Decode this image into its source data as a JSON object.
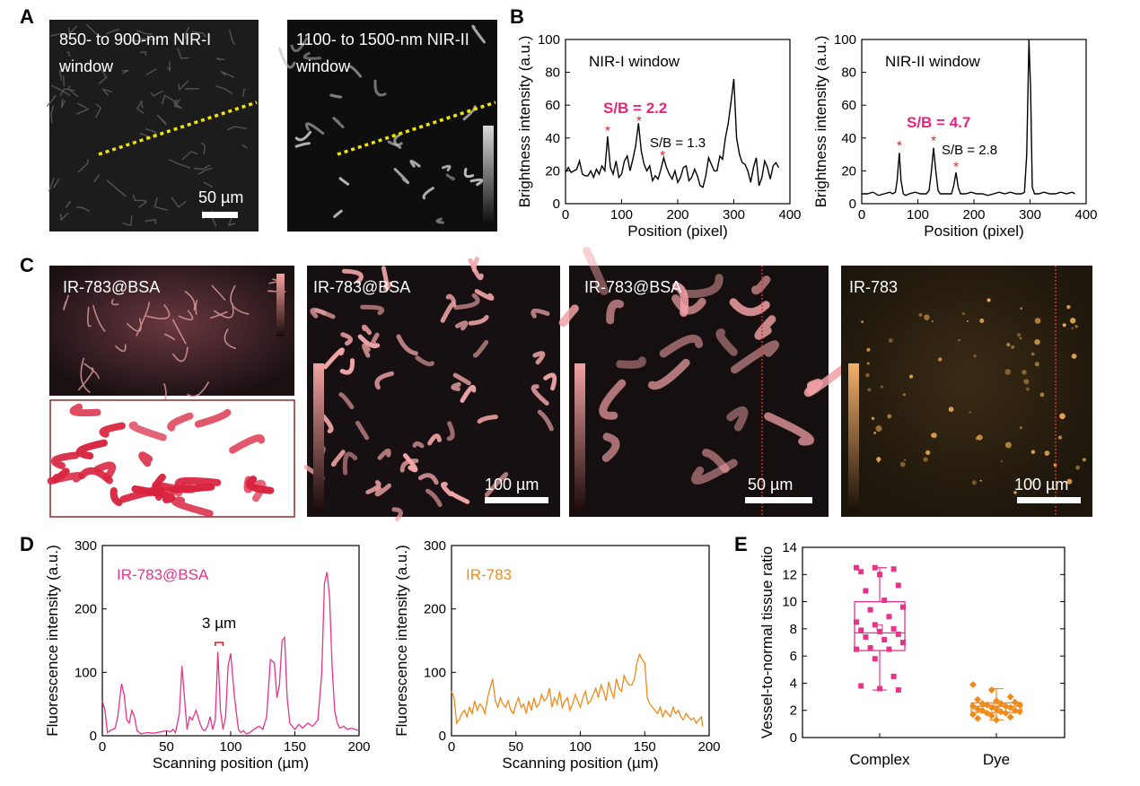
{
  "panel_labels": {
    "A": "A",
    "B": "B",
    "C": "C",
    "D": "D",
    "E": "E"
  },
  "panelA": {
    "left_caption_line1": "850- to 900-nm NIR-I",
    "left_caption_line2": "window",
    "right_caption_line1": "1100- to 1500-nm NIR-II",
    "right_caption_line2": "window",
    "scale_label": "50 µm"
  },
  "panelC": {
    "img1_label": "IR-783@BSA",
    "img2_label": "IR-783@BSA",
    "img2_scale": "100 µm",
    "img3_label": "IR-783@BSA",
    "img3_scale": "50 µm",
    "img4_label": "IR-783",
    "img4_scale": "100 µm"
  },
  "colors": {
    "complex": "#e8338a",
    "dye": "#f08a1c",
    "line": "#000000",
    "marker": "#e02020",
    "sb_text": "#e8237a"
  },
  "chart_data": [
    {
      "id": "B1",
      "type": "line",
      "title": "NIR-I window",
      "xlabel": "Position (pixel)",
      "ylabel": "Brightness intensity (a.u.)",
      "xlim": [
        0,
        400
      ],
      "ylim": [
        0,
        100
      ],
      "xticks": [
        0,
        100,
        200,
        300,
        400
      ],
      "yticks": [
        0,
        20,
        40,
        60,
        80,
        100
      ],
      "annotations": {
        "sb_main": "S/B = 2.2",
        "sb_secondary": "S/B = 1.3",
        "star": "*"
      },
      "stars": [
        [
          75,
          44
        ],
        [
          131,
          50
        ],
        [
          173,
          29
        ]
      ],
      "x": [
        0,
        5,
        10,
        15,
        20,
        25,
        30,
        35,
        40,
        45,
        50,
        55,
        60,
        65,
        70,
        75,
        80,
        85,
        90,
        95,
        100,
        105,
        110,
        115,
        120,
        125,
        130,
        135,
        140,
        145,
        150,
        155,
        160,
        165,
        170,
        175,
        180,
        185,
        190,
        195,
        200,
        205,
        210,
        215,
        220,
        225,
        230,
        235,
        240,
        245,
        250,
        255,
        260,
        265,
        270,
        275,
        280,
        285,
        290,
        295,
        300,
        305,
        310,
        315,
        320,
        325,
        330,
        335,
        340,
        345,
        350,
        355,
        360,
        365,
        370,
        375,
        380
      ],
      "y": [
        19,
        22,
        19,
        20,
        21,
        26,
        18,
        17,
        17,
        20,
        16,
        21,
        18,
        23,
        20,
        41,
        22,
        18,
        26,
        16,
        18,
        26,
        29,
        20,
        27,
        35,
        49,
        32,
        24,
        20,
        23,
        14,
        17,
        15,
        21,
        28,
        22,
        18,
        15,
        20,
        13,
        16,
        22,
        23,
        14,
        16,
        21,
        17,
        11,
        10,
        17,
        28,
        24,
        20,
        20,
        29,
        27,
        40,
        49,
        62,
        76,
        40,
        30,
        25,
        24,
        20,
        13,
        22,
        28,
        11,
        16,
        26,
        22,
        15,
        23,
        25,
        22
      ]
    },
    {
      "id": "B2",
      "type": "line",
      "title": "NIR-II window",
      "xlabel": "Position (pixel)",
      "ylabel": "Brightness intensity (a.u.)",
      "xlim": [
        0,
        400
      ],
      "ylim": [
        0,
        100
      ],
      "xticks": [
        0,
        100,
        200,
        300,
        400
      ],
      "yticks": [
        0,
        20,
        40,
        60,
        80,
        100
      ],
      "annotations": {
        "sb_main": "S/B = 4.7",
        "sb_secondary": "S/B = 2.8",
        "star": "*"
      },
      "stars": [
        [
          67,
          35
        ],
        [
          128,
          38
        ],
        [
          168,
          22
        ]
      ],
      "x": [
        0,
        10,
        20,
        30,
        40,
        50,
        55,
        60,
        63,
        67,
        70,
        74,
        78,
        85,
        95,
        105,
        115,
        120,
        124,
        128,
        132,
        136,
        140,
        150,
        160,
        164,
        168,
        172,
        176,
        185,
        195,
        205,
        215,
        225,
        235,
        245,
        255,
        265,
        275,
        285,
        290,
        294,
        298,
        301,
        304,
        308,
        315,
        325,
        335,
        345,
        355,
        365,
        375,
        380
      ],
      "y": [
        6,
        6,
        7,
        5,
        6,
        7,
        6,
        7,
        14,
        31,
        14,
        6,
        5,
        6,
        7,
        6,
        6,
        8,
        19,
        34,
        20,
        8,
        6,
        6,
        6,
        11,
        19,
        10,
        6,
        6,
        7,
        6,
        6,
        5,
        6,
        7,
        6,
        7,
        6,
        6,
        7,
        30,
        100,
        70,
        10,
        6,
        6,
        7,
        6,
        6,
        7,
        6,
        7,
        6
      ]
    },
    {
      "id": "D1",
      "type": "line",
      "series_label": "IR-783@BSA",
      "xlabel": "Scanning position (µm)",
      "ylabel": "Fluorescence intensity (a.u.)",
      "xlim": [
        0,
        200
      ],
      "ylim": [
        0,
        300
      ],
      "xticks": [
        0,
        50,
        100,
        150,
        200
      ],
      "yticks": [
        0,
        100,
        200,
        300
      ],
      "annotation": "3 µm",
      "x": [
        0,
        2,
        4,
        6,
        8,
        10,
        12,
        15,
        17,
        19,
        21,
        23,
        25,
        27,
        30,
        35,
        40,
        45,
        50,
        53,
        55,
        57,
        60,
        62,
        64,
        66,
        68,
        70,
        73,
        76,
        78,
        80,
        82,
        84,
        86,
        88,
        90,
        92,
        94,
        96,
        98,
        100,
        103,
        106,
        108,
        110,
        112,
        115,
        118,
        122,
        125,
        128,
        131,
        134,
        136,
        138,
        140,
        142,
        144,
        146,
        148,
        150,
        153,
        156,
        160,
        164,
        168,
        171,
        173,
        175,
        177,
        179,
        181,
        183,
        185,
        188,
        191,
        194,
        197,
        200
      ],
      "y": [
        55,
        40,
        5,
        8,
        10,
        12,
        30,
        82,
        65,
        25,
        20,
        40,
        30,
        8,
        3,
        5,
        4,
        6,
        8,
        6,
        10,
        5,
        35,
        110,
        60,
        10,
        30,
        25,
        40,
        20,
        10,
        8,
        15,
        30,
        10,
        25,
        132,
        40,
        10,
        30,
        110,
        130,
        60,
        10,
        5,
        8,
        3,
        5,
        10,
        15,
        10,
        30,
        120,
        115,
        60,
        80,
        150,
        155,
        60,
        20,
        15,
        10,
        18,
        12,
        20,
        15,
        25,
        100,
        240,
        258,
        220,
        110,
        40,
        20,
        12,
        15,
        10,
        12,
        10,
        8
      ]
    },
    {
      "id": "D2",
      "type": "line",
      "series_label": "IR-783",
      "xlabel": "Scanning position (µm)",
      "ylabel": "Fluorescence intensity (a.u.)",
      "xlim": [
        0,
        200
      ],
      "ylim": [
        0,
        300
      ],
      "xticks": [
        0,
        50,
        100,
        150,
        200
      ],
      "yticks": [
        0,
        100,
        200,
        300
      ],
      "x": [
        0,
        2,
        4,
        6,
        8,
        10,
        12,
        14,
        16,
        18,
        20,
        22,
        24,
        26,
        28,
        30,
        32,
        34,
        36,
        38,
        40,
        42,
        44,
        46,
        48,
        50,
        52,
        54,
        56,
        58,
        60,
        62,
        64,
        66,
        68,
        70,
        72,
        74,
        76,
        78,
        80,
        82,
        84,
        86,
        88,
        90,
        92,
        94,
        96,
        98,
        100,
        102,
        104,
        106,
        108,
        110,
        112,
        114,
        116,
        118,
        120,
        122,
        124,
        126,
        128,
        130,
        132,
        134,
        136,
        138,
        140,
        142,
        144,
        146,
        148,
        150,
        152,
        154,
        156,
        158,
        160,
        162,
        164,
        166,
        168,
        170,
        172,
        174,
        176,
        178,
        180,
        182,
        184,
        186,
        188,
        190,
        192,
        194,
        195
      ],
      "y": [
        70,
        60,
        20,
        25,
        35,
        40,
        30,
        45,
        35,
        55,
        40,
        50,
        45,
        35,
        60,
        75,
        90,
        55,
        45,
        60,
        50,
        45,
        55,
        40,
        35,
        50,
        60,
        45,
        50,
        35,
        55,
        40,
        60,
        45,
        50,
        65,
        55,
        60,
        75,
        45,
        60,
        50,
        70,
        45,
        55,
        60,
        40,
        50,
        65,
        55,
        45,
        60,
        70,
        50,
        55,
        65,
        75,
        60,
        80,
        70,
        55,
        85,
        70,
        60,
        90,
        75,
        70,
        95,
        85,
        80,
        80,
        90,
        115,
        128,
        120,
        115,
        60,
        50,
        45,
        40,
        35,
        45,
        30,
        40,
        35,
        30,
        45,
        35,
        40,
        30,
        25,
        35,
        30,
        25,
        28,
        20,
        25,
        30,
        15
      ]
    },
    {
      "id": "E",
      "type": "box",
      "ylabel": "Vessel-to-normal tissue ratio",
      "categories": [
        "Complex",
        "Dye"
      ],
      "ylim": [
        0,
        14
      ],
      "yticks": [
        0,
        2,
        4,
        6,
        8,
        10,
        12,
        14
      ],
      "boxes": [
        {
          "name": "Complex",
          "q1": 6.4,
          "median": 7.7,
          "q3": 10.0,
          "whisker_low": 3.5,
          "whisker_high": 12.5,
          "mean": 8.1,
          "points": [
            12.5,
            12.5,
            12.4,
            12.2,
            12.0,
            11.2,
            10.8,
            10.1,
            9.6,
            9.4,
            8.9,
            8.5,
            8.3,
            8.0,
            7.9,
            7.8,
            7.6,
            7.4,
            7.2,
            7.0,
            6.6,
            6.5,
            6.5,
            5.8,
            4.5,
            3.8,
            3.6,
            3.5
          ]
        },
        {
          "name": "Dye",
          "q1": 1.85,
          "median": 2.3,
          "q3": 2.55,
          "whisker_low": 1.3,
          "whisker_high": 3.6,
          "mean": 2.3,
          "points": [
            3.9,
            3.5,
            3.0,
            2.8,
            2.7,
            2.6,
            2.5,
            2.5,
            2.4,
            2.4,
            2.3,
            2.3,
            2.2,
            2.2,
            2.1,
            2.1,
            2.0,
            2.0,
            1.9,
            1.9,
            1.8,
            1.8,
            1.7,
            1.6,
            1.5,
            1.4,
            1.3
          ]
        }
      ]
    }
  ]
}
